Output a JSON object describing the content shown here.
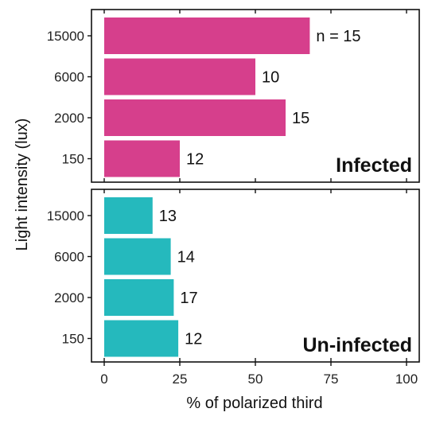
{
  "chart_data": {
    "type": "bar",
    "orientation": "horizontal",
    "xlabel": "% of polarized third",
    "ylabel": "Light intensity (lux)",
    "xlim": [
      0,
      100
    ],
    "xticks": [
      "0",
      "25",
      "50",
      "75",
      "100"
    ],
    "categories": [
      "15000",
      "6000",
      "2000",
      "150"
    ],
    "grid": false,
    "panels": [
      {
        "title": "Infected",
        "color": "#D63F8C",
        "values": [
          68,
          50,
          60,
          25
        ],
        "labels": [
          "n = 15",
          "10",
          "15",
          "12"
        ]
      },
      {
        "title": "Un-infected",
        "color": "#25B9BD",
        "values": [
          16,
          22,
          23,
          24.5
        ],
        "labels": [
          "13",
          "14",
          "17",
          "12"
        ]
      }
    ]
  }
}
